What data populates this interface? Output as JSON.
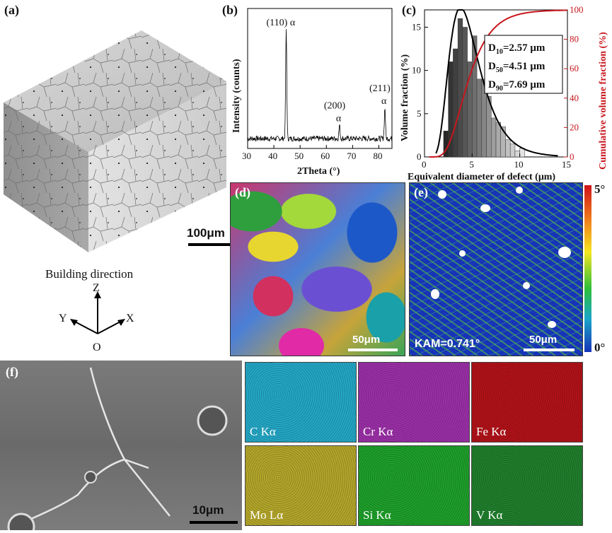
{
  "panels": {
    "a": {
      "label": "(a)",
      "scale_bar": "100μm",
      "building_direction": "Building direction",
      "axes": {
        "z": "Z",
        "y": "Y",
        "x": "X",
        "origin": "O"
      }
    },
    "b": {
      "label": "(b)",
      "chart_data": {
        "type": "line",
        "xlabel": "2Theta (°)",
        "ylabel": "Intensity (counts)",
        "xlim": [
          30,
          85
        ],
        "xticks": [
          30,
          40,
          50,
          60,
          70,
          80
        ],
        "peaks": [
          {
            "x": 44.7,
            "label": "(110) α",
            "height": 1.0
          },
          {
            "x": 65.0,
            "label": "(200) α",
            "height": 0.12
          },
          {
            "x": 82.3,
            "label": "(211) α",
            "height": 0.28
          }
        ]
      }
    },
    "c": {
      "label": "(c)",
      "chart_data": {
        "type": "bar",
        "xlabel": "Equivalent diameter of defect (μm)",
        "ylabel": "Volume fraction (%)",
        "ylabel_right": "Cumulative volume fraction (%)",
        "xlim": [
          0,
          15
        ],
        "ylim": [
          0,
          17
        ],
        "ylim_right": [
          0,
          100
        ],
        "xticks": [
          0,
          5,
          10,
          15
        ],
        "yticks": [
          0,
          5,
          10,
          15
        ],
        "yticks_right": [
          0,
          20,
          40,
          60,
          80,
          100
        ],
        "bins": [
          {
            "x": 2.25,
            "value": 3.0
          },
          {
            "x": 2.75,
            "value": 11.0
          },
          {
            "x": 3.25,
            "value": 12.5
          },
          {
            "x": 3.75,
            "value": 16.0
          },
          {
            "x": 4.25,
            "value": 15.0
          },
          {
            "x": 4.75,
            "value": 11.0
          },
          {
            "x": 5.25,
            "value": 14.0
          },
          {
            "x": 5.75,
            "value": 9.0
          },
          {
            "x": 6.25,
            "value": 9.0
          },
          {
            "x": 6.75,
            "value": 7.0
          },
          {
            "x": 7.25,
            "value": 4.5
          },
          {
            "x": 7.75,
            "value": 4.0
          },
          {
            "x": 8.25,
            "value": 3.5
          },
          {
            "x": 8.75,
            "value": 2.0
          },
          {
            "x": 9.25,
            "value": 1.5
          },
          {
            "x": 9.75,
            "value": 0.7
          },
          {
            "x": 10.25,
            "value": 1.0
          }
        ],
        "annotations": [
          {
            "name": "D10",
            "sub": "10",
            "value": "=2.57 μm"
          },
          {
            "name": "D50",
            "sub": "50",
            "value": "=4.51 μm"
          },
          {
            "name": "D90",
            "sub": "90",
            "value": "=7.69 μm"
          }
        ],
        "colors": {
          "fit": "#000000",
          "cumulative": "#c8161d"
        }
      }
    },
    "d": {
      "label": "(d)",
      "scale_bar": "50μm"
    },
    "e": {
      "label": "(e)",
      "scale_bar": "50μm",
      "kam": "KAM=0.741°",
      "colorbar_max": "5°",
      "colorbar_min": "0°"
    },
    "f": {
      "label": "(f)",
      "scale_bar": "10μm",
      "maps": [
        {
          "label": "C Kα",
          "color": "#23a6c4"
        },
        {
          "label": "Cr Kα",
          "color": "#9a2fa6"
        },
        {
          "label": "Fe Kα",
          "color": "#b01218"
        },
        {
          "label": "Mo Lα",
          "color": "#b2a52a"
        },
        {
          "label": "Si Kα",
          "color": "#1e9e2a"
        },
        {
          "label": "V Kα",
          "color": "#1f7e2c"
        }
      ]
    }
  }
}
